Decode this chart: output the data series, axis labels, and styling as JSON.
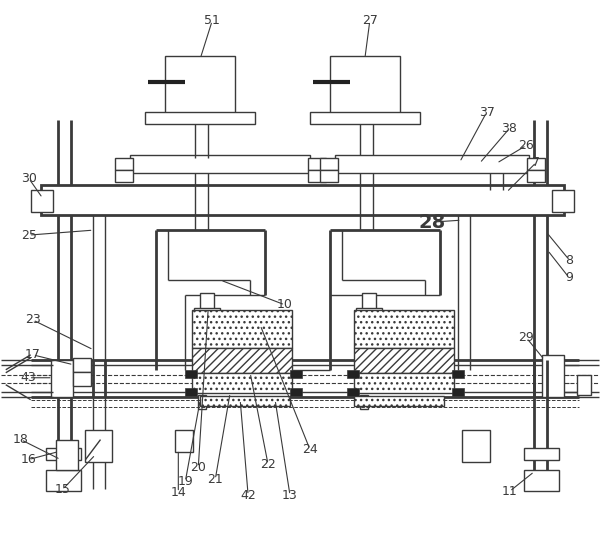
{
  "bg_color": "#ffffff",
  "lc": "#3a3a3a",
  "lw": 1.0,
  "lw2": 2.0,
  "fig_width": 6.11,
  "fig_height": 5.55,
  "dpi": 100
}
